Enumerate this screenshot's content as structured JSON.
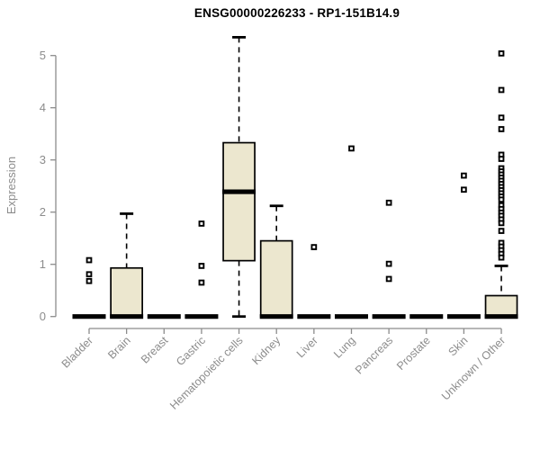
{
  "title": "ENSG00000226233 - RP1-151B14.9",
  "chart_data": {
    "type": "boxplot",
    "title": "ENSG00000226233 - RP1-151B14.9",
    "xlabel": "",
    "ylabel": "Expression",
    "ylim": [
      0,
      5.4
    ],
    "yticks": [
      0,
      1,
      2,
      3,
      4,
      5
    ],
    "grid": false,
    "legend": false,
    "box_fill": "#ECE7CF",
    "box_border": "#000000",
    "median_color": "#000000",
    "axis_color": "#8C8C8C",
    "text_color": "#8C8C8C",
    "categories": [
      "Bladder",
      "Brain",
      "Breast",
      "Gastric",
      "Hematopoietic cells",
      "Kidney",
      "Liver",
      "Lung",
      "Pancreas",
      "Prostate",
      "Skin",
      "Unknown / Other"
    ],
    "series": [
      {
        "category": "Bladder",
        "whislo": 0,
        "q1": 0,
        "med": 0,
        "q3": 0,
        "whishi": 0,
        "outliers": [
          1.08,
          0.81,
          0.68
        ]
      },
      {
        "category": "Brain",
        "whislo": 0,
        "q1": 0,
        "med": 0,
        "q3": 0.93,
        "whishi": 1.97,
        "outliers": []
      },
      {
        "category": "Breast",
        "whislo": 0,
        "q1": 0,
        "med": 0,
        "q3": 0,
        "whishi": 0,
        "outliers": []
      },
      {
        "category": "Gastric",
        "whislo": 0,
        "q1": 0,
        "med": 0,
        "q3": 0,
        "whishi": 0,
        "outliers": [
          1.78,
          0.97,
          0.65
        ]
      },
      {
        "category": "Hematopoietic cells",
        "whislo": 0,
        "q1": 1.07,
        "med": 2.39,
        "q3": 3.33,
        "whishi": 5.35,
        "outliers": []
      },
      {
        "category": "Kidney",
        "whislo": 0,
        "q1": 0,
        "med": 0,
        "q3": 1.45,
        "whishi": 2.12,
        "outliers": []
      },
      {
        "category": "Liver",
        "whislo": 0,
        "q1": 0,
        "med": 0,
        "q3": 0,
        "whishi": 0,
        "outliers": [
          1.33
        ]
      },
      {
        "category": "Lung",
        "whislo": 0,
        "q1": 0,
        "med": 0,
        "q3": 0,
        "whishi": 0,
        "outliers": [
          3.22
        ]
      },
      {
        "category": "Pancreas",
        "whislo": 0,
        "q1": 0,
        "med": 0,
        "q3": 0,
        "whishi": 0,
        "outliers": [
          2.18,
          1.01,
          0.72
        ]
      },
      {
        "category": "Prostate",
        "whislo": 0,
        "q1": 0,
        "med": 0,
        "q3": 0,
        "whishi": 0,
        "outliers": []
      },
      {
        "category": "Skin",
        "whislo": 0,
        "q1": 0,
        "med": 0,
        "q3": 0,
        "whishi": 0,
        "outliers": [
          2.7,
          2.43
        ]
      },
      {
        "category": "Unknown / Other",
        "whislo": 0,
        "q1": 0,
        "med": 0,
        "q3": 0.4,
        "whishi": 0.97,
        "outliers": [
          5.04,
          4.34,
          3.81,
          3.59,
          3.1,
          3.02,
          2.84,
          2.78,
          2.72,
          2.66,
          2.6,
          2.54,
          2.48,
          2.42,
          2.36,
          2.3,
          2.24,
          2.13,
          2.06,
          1.99,
          1.93,
          1.86,
          1.79,
          1.64,
          1.41,
          1.34,
          1.27,
          1.2,
          1.13
        ]
      }
    ]
  }
}
